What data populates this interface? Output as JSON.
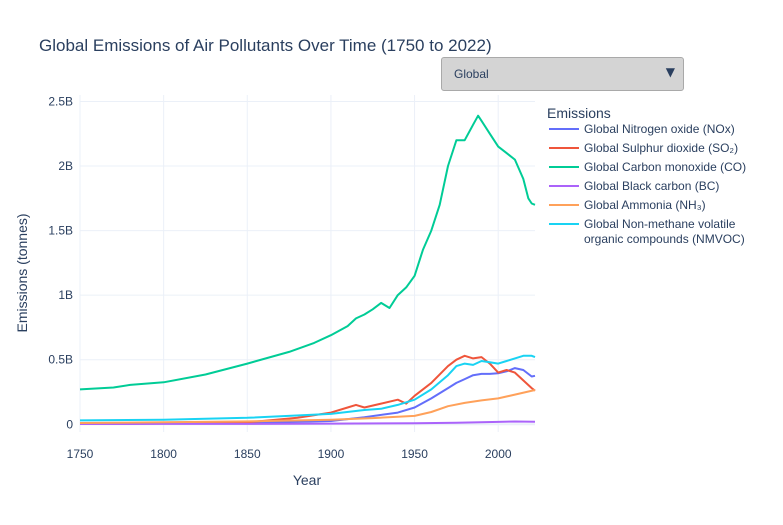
{
  "chart_data": {
    "type": "line",
    "title": "Global Emissions of Air Pollutants Over Time (1750 to 2022)",
    "xlabel": "Year",
    "ylabel": "Emissions (tonnes)",
    "xlim": [
      1750,
      2022
    ],
    "ylim": [
      -60000000,
      2550000000
    ],
    "x_ticks": [
      1750,
      1800,
      1850,
      1900,
      1950,
      2000
    ],
    "x_tick_labels": [
      "1750",
      "1800",
      "1850",
      "1900",
      "1950",
      "2000"
    ],
    "y_ticks": [
      0,
      500000000,
      1000000000,
      1500000000,
      2000000000,
      2500000000
    ],
    "y_tick_labels": [
      "0",
      "0.5B",
      "1B",
      "1.5B",
      "2B",
      "2.5B"
    ],
    "grid": true,
    "legend_title": "Emissions",
    "legend_position": "right",
    "series": [
      {
        "name": "Global Nitrogen oxide (NOx)",
        "color": "#636efa",
        "points": [
          [
            1750,
            5000000
          ],
          [
            1800,
            6000000
          ],
          [
            1850,
            9000000
          ],
          [
            1900,
            25000000
          ],
          [
            1920,
            55000000
          ],
          [
            1940,
            90000000
          ],
          [
            1950,
            130000000
          ],
          [
            1960,
            200000000
          ],
          [
            1970,
            280000000
          ],
          [
            1975,
            320000000
          ],
          [
            1980,
            350000000
          ],
          [
            1985,
            380000000
          ],
          [
            1990,
            390000000
          ],
          [
            1995,
            390000000
          ],
          [
            2000,
            395000000
          ],
          [
            2005,
            410000000
          ],
          [
            2010,
            435000000
          ],
          [
            2015,
            420000000
          ],
          [
            2020,
            370000000
          ],
          [
            2022,
            375000000
          ]
        ]
      },
      {
        "name": "Global Sulphur dioxide (SO₂)",
        "color": "#ef553b",
        "points": [
          [
            1750,
            4000000
          ],
          [
            1800,
            6000000
          ],
          [
            1850,
            15000000
          ],
          [
            1880,
            50000000
          ],
          [
            1900,
            90000000
          ],
          [
            1910,
            130000000
          ],
          [
            1915,
            150000000
          ],
          [
            1920,
            130000000
          ],
          [
            1930,
            160000000
          ],
          [
            1940,
            190000000
          ],
          [
            1945,
            160000000
          ],
          [
            1950,
            220000000
          ],
          [
            1960,
            320000000
          ],
          [
            1970,
            450000000
          ],
          [
            1975,
            500000000
          ],
          [
            1980,
            530000000
          ],
          [
            1985,
            510000000
          ],
          [
            1990,
            520000000
          ],
          [
            1995,
            470000000
          ],
          [
            2000,
            400000000
          ],
          [
            2005,
            420000000
          ],
          [
            2010,
            400000000
          ],
          [
            2015,
            340000000
          ],
          [
            2020,
            280000000
          ],
          [
            2022,
            260000000
          ]
        ]
      },
      {
        "name": "Global Carbon monoxide (CO)",
        "color": "#00cc96",
        "points": [
          [
            1750,
            270000000
          ],
          [
            1770,
            285000000
          ],
          [
            1780,
            305000000
          ],
          [
            1800,
            325000000
          ],
          [
            1825,
            385000000
          ],
          [
            1850,
            470000000
          ],
          [
            1875,
            560000000
          ],
          [
            1890,
            630000000
          ],
          [
            1900,
            690000000
          ],
          [
            1910,
            760000000
          ],
          [
            1915,
            820000000
          ],
          [
            1920,
            850000000
          ],
          [
            1925,
            890000000
          ],
          [
            1930,
            940000000
          ],
          [
            1935,
            900000000
          ],
          [
            1940,
            1000000000
          ],
          [
            1945,
            1060000000
          ],
          [
            1950,
            1150000000
          ],
          [
            1955,
            1350000000
          ],
          [
            1960,
            1500000000
          ],
          [
            1965,
            1700000000
          ],
          [
            1970,
            2000000000
          ],
          [
            1975,
            2200000000
          ],
          [
            1980,
            2200000000
          ],
          [
            1985,
            2320000000
          ],
          [
            1988,
            2390000000
          ],
          [
            1990,
            2350000000
          ],
          [
            1995,
            2250000000
          ],
          [
            2000,
            2150000000
          ],
          [
            2005,
            2100000000
          ],
          [
            2010,
            2050000000
          ],
          [
            2015,
            1900000000
          ],
          [
            2018,
            1750000000
          ],
          [
            2020,
            1710000000
          ],
          [
            2022,
            1700000000
          ]
        ]
      },
      {
        "name": "Global Black carbon (BC)",
        "color": "#ab63fa",
        "points": [
          [
            1750,
            2000000
          ],
          [
            1800,
            2500000
          ],
          [
            1850,
            3000000
          ],
          [
            1900,
            5000000
          ],
          [
            1950,
            8000000
          ],
          [
            1975,
            12000000
          ],
          [
            2000,
            18000000
          ],
          [
            2010,
            21000000
          ],
          [
            2022,
            19000000
          ]
        ]
      },
      {
        "name": "Global Ammonia (NH₃)",
        "color": "#ffa15a",
        "points": [
          [
            1750,
            10000000
          ],
          [
            1800,
            15000000
          ],
          [
            1850,
            22000000
          ],
          [
            1900,
            35000000
          ],
          [
            1925,
            48000000
          ],
          [
            1950,
            65000000
          ],
          [
            1960,
            95000000
          ],
          [
            1970,
            140000000
          ],
          [
            1980,
            165000000
          ],
          [
            1990,
            185000000
          ],
          [
            2000,
            200000000
          ],
          [
            2010,
            230000000
          ],
          [
            2022,
            265000000
          ]
        ]
      },
      {
        "name": "Global Non-methane volatile organic compounds (NMVOC)",
        "color": "#19d3f3",
        "points": [
          [
            1750,
            30000000
          ],
          [
            1800,
            35000000
          ],
          [
            1850,
            50000000
          ],
          [
            1900,
            80000000
          ],
          [
            1920,
            110000000
          ],
          [
            1930,
            120000000
          ],
          [
            1940,
            150000000
          ],
          [
            1950,
            190000000
          ],
          [
            1960,
            270000000
          ],
          [
            1970,
            380000000
          ],
          [
            1975,
            450000000
          ],
          [
            1980,
            470000000
          ],
          [
            1985,
            460000000
          ],
          [
            1990,
            490000000
          ],
          [
            1995,
            480000000
          ],
          [
            2000,
            470000000
          ],
          [
            2005,
            490000000
          ],
          [
            2010,
            510000000
          ],
          [
            2015,
            530000000
          ],
          [
            2020,
            530000000
          ],
          [
            2022,
            520000000
          ]
        ]
      }
    ]
  },
  "legend_labels": [
    [
      "Global Nitrogen oxide (NOx)"
    ],
    [
      "Global Sulphur dioxide (SO₂)"
    ],
    [
      "Global Carbon monoxide (CO)"
    ],
    [
      "Global Black carbon (BC)"
    ],
    [
      "Global Ammonia (NH₃)"
    ],
    [
      "Global Non-methane volatile",
      "organic compounds (NMVOC)"
    ]
  ],
  "dropdown": {
    "selected": "Global",
    "arrow_icon": "triangle-down-icon"
  }
}
